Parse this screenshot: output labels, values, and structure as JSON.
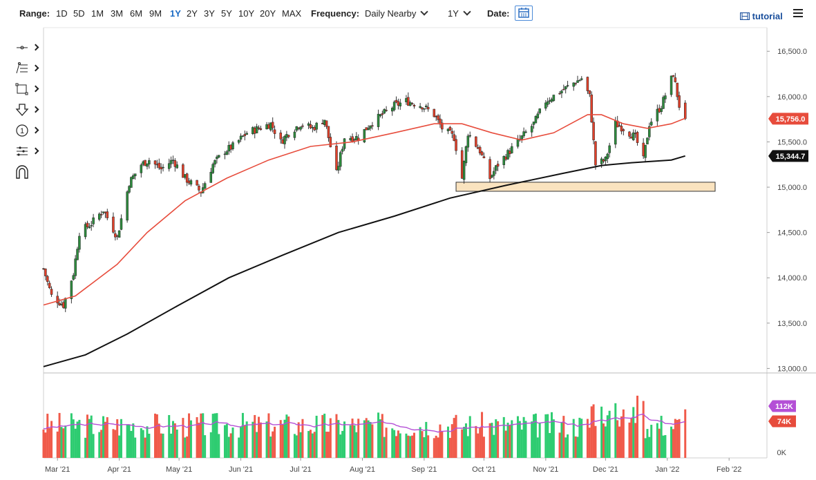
{
  "toolbar": {
    "range_label": "Range:",
    "ranges": [
      "1D",
      "5D",
      "1M",
      "3M",
      "6M",
      "9M",
      "1Y",
      "2Y",
      "3Y",
      "5Y",
      "10Y",
      "20Y",
      "MAX"
    ],
    "active_range": "1Y",
    "frequency_label": "Frequency:",
    "frequency_value": "Daily Nearby",
    "period_value": "1Y",
    "date_label": "Date:",
    "tutorial_label": "tutorial"
  },
  "drawing_tools": [
    "crosshair-line-icon",
    "fibonacci-tool-icon",
    "rectangle-tool-icon",
    "arrow-down-tool-icon",
    "wave-count-tool-icon",
    "measure-tool-icon",
    "magnet-icon"
  ],
  "drawing_tool_one_label": "1",
  "colors": {
    "up_candle": "#2e8b3e",
    "down_candle": "#e0402a",
    "ma_fast": "#e74c3c",
    "ma_slow": "#111111",
    "volume_up": "#2ecc71",
    "volume_down": "#f05a4a",
    "volume_avg": "#b44fd6",
    "support_zone": "#fae3bf",
    "last_price_badge": "#e74c3c",
    "slow_ma_badge": "#111111",
    "vol_avg_badge": "#b44fd6",
    "vol_badge": "#e74c3c"
  },
  "chart_data": {
    "type": "candlestick",
    "title": "",
    "x_ticks": [
      "Mar '21",
      "Apr '21",
      "May '21",
      "Jun '21",
      "Jul '21",
      "Aug '21",
      "Sep '21",
      "Oct '21",
      "Nov '21",
      "Dec '21",
      "Jan '22",
      "Feb '22"
    ],
    "price_axis": {
      "ticks": [
        16500,
        16000,
        15500,
        15000,
        14500,
        14000,
        13500,
        13000
      ],
      "tick_labels": [
        "16,500.0",
        "16,000.0",
        "15,500.0",
        "15,000.0",
        "14,500.0",
        "14,000.0",
        "13,500.0",
        "13,000.0"
      ],
      "range": [
        12950,
        16700
      ]
    },
    "last_price": 15756.0,
    "last_price_label": "15,756.0",
    "slow_ma_last": 15344.7,
    "slow_ma_label": "15,344.7",
    "price_path": [
      [
        "2021-02-22",
        14100
      ],
      [
        "2021-02-26",
        13800
      ],
      [
        "2021-03-04",
        13700
      ],
      [
        "2021-03-09",
        14050
      ],
      [
        "2021-03-12",
        14500
      ],
      [
        "2021-03-18",
        14600
      ],
      [
        "2021-03-24",
        14750
      ],
      [
        "2021-03-31",
        14450
      ],
      [
        "2021-04-06",
        15050
      ],
      [
        "2021-04-12",
        15250
      ],
      [
        "2021-04-16",
        15300
      ],
      [
        "2021-04-22",
        15200
      ],
      [
        "2021-04-28",
        15300
      ],
      [
        "2021-05-04",
        15100
      ],
      [
        "2021-05-12",
        14950
      ],
      [
        "2021-05-18",
        15250
      ],
      [
        "2021-05-24",
        15400
      ],
      [
        "2021-05-28",
        15450
      ],
      [
        "2021-06-04",
        15600
      ],
      [
        "2021-06-10",
        15650
      ],
      [
        "2021-06-16",
        15700
      ],
      [
        "2021-06-21",
        15500
      ],
      [
        "2021-06-25",
        15600
      ],
      [
        "2021-07-01",
        15700
      ],
      [
        "2021-07-07",
        15650
      ],
      [
        "2021-07-13",
        15750
      ],
      [
        "2021-07-19",
        15150
      ],
      [
        "2021-07-23",
        15550
      ],
      [
        "2021-07-30",
        15550
      ],
      [
        "2021-08-05",
        15700
      ],
      [
        "2021-08-11",
        15800
      ],
      [
        "2021-08-17",
        15900
      ],
      [
        "2021-08-23",
        15950
      ],
      [
        "2021-08-31",
        15900
      ],
      [
        "2021-09-06",
        15800
      ],
      [
        "2021-09-10",
        15650
      ],
      [
        "2021-09-16",
        15550
      ],
      [
        "2021-09-20",
        15100
      ],
      [
        "2021-09-23",
        15600
      ],
      [
        "2021-09-29",
        15400
      ],
      [
        "2021-10-04",
        15100
      ],
      [
        "2021-10-08",
        15250
      ],
      [
        "2021-10-14",
        15400
      ],
      [
        "2021-10-20",
        15550
      ],
      [
        "2021-10-26",
        15700
      ],
      [
        "2021-11-01",
        15950
      ],
      [
        "2021-11-08",
        16050
      ],
      [
        "2021-11-15",
        16150
      ],
      [
        "2021-11-19",
        16200
      ],
      [
        "2021-11-23",
        16000
      ],
      [
        "2021-11-26",
        15250
      ],
      [
        "2021-12-01",
        15300
      ],
      [
        "2021-12-06",
        15700
      ],
      [
        "2021-12-10",
        15650
      ],
      [
        "2021-12-16",
        15550
      ],
      [
        "2021-12-20",
        15300
      ],
      [
        "2021-12-23",
        15700
      ],
      [
        "2021-12-29",
        15900
      ],
      [
        "2022-01-04",
        16250
      ],
      [
        "2022-01-07",
        15900
      ],
      [
        "2022-01-10",
        15756
      ]
    ],
    "ma_fast_path": [
      [
        "2021-02-22",
        13700
      ],
      [
        "2021-03-10",
        13800
      ],
      [
        "2021-03-31",
        14150
      ],
      [
        "2021-04-15",
        14500
      ],
      [
        "2021-05-04",
        14850
      ],
      [
        "2021-05-25",
        15100
      ],
      [
        "2021-06-15",
        15300
      ],
      [
        "2021-07-06",
        15450
      ],
      [
        "2021-07-27",
        15500
      ],
      [
        "2021-08-17",
        15600
      ],
      [
        "2021-09-06",
        15700
      ],
      [
        "2021-09-20",
        15700
      ],
      [
        "2021-10-05",
        15600
      ],
      [
        "2021-10-20",
        15520
      ],
      [
        "2021-11-05",
        15600
      ],
      [
        "2021-11-22",
        15800
      ],
      [
        "2021-11-29",
        15800
      ],
      [
        "2021-12-10",
        15700
      ],
      [
        "2021-12-22",
        15650
      ],
      [
        "2022-01-03",
        15700
      ],
      [
        "2022-01-10",
        15760
      ]
    ],
    "ma_slow_path": [
      [
        "2021-02-22",
        13020
      ],
      [
        "2021-03-15",
        13150
      ],
      [
        "2021-04-05",
        13380
      ],
      [
        "2021-05-01",
        13700
      ],
      [
        "2021-05-26",
        14000
      ],
      [
        "2021-06-22",
        14250
      ],
      [
        "2021-07-20",
        14500
      ],
      [
        "2021-08-17",
        14680
      ],
      [
        "2021-09-14",
        14880
      ],
      [
        "2021-10-12",
        15020
      ],
      [
        "2021-11-09",
        15150
      ],
      [
        "2021-11-29",
        15240
      ],
      [
        "2021-12-14",
        15270
      ],
      [
        "2022-01-03",
        15300
      ],
      [
        "2022-01-10",
        15345
      ]
    ],
    "support_zone": {
      "x_start": "2021-09-17",
      "x_end": "2022-01-25",
      "y_low": 14955,
      "y_high": 15055
    },
    "volume": {
      "y_ticks": [
        0
      ],
      "y_tick_labels": [
        "0K"
      ],
      "range": [
        0,
        120
      ],
      "avg_last": 112,
      "avg_label": "112K",
      "last": 74,
      "last_label": "74K"
    }
  }
}
